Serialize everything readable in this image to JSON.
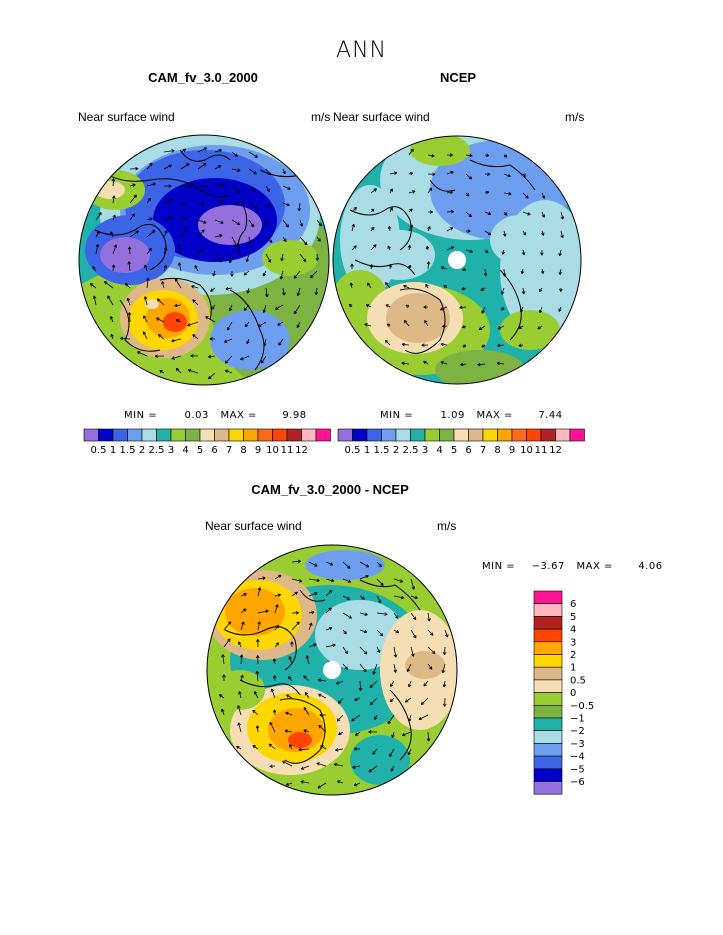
{
  "page": {
    "title": "ANN"
  },
  "colors": {
    "levels_absolute": [
      "#9370db",
      "#0000c8",
      "#3c64e6",
      "#6e9ef0",
      "#aadce6",
      "#20b2aa",
      "#9acd32",
      "#7cb342",
      "#f5deb3",
      "#deb887",
      "#ffd700",
      "#ffa500",
      "#ff6a1a",
      "#ff4500",
      "#b22222",
      "#ffb6c1",
      "#ff1493"
    ],
    "levels_diff": [
      "#ff1493",
      "#ffb6c1",
      "#b22222",
      "#ff4500",
      "#ffa500",
      "#ffd700",
      "#deb887",
      "#f5deb3",
      "#9acd32",
      "#7cb342",
      "#20b2aa",
      "#aadce6",
      "#6e9ef0",
      "#3c64e6",
      "#0000c8",
      "#9370db"
    ]
  },
  "panels": {
    "model": {
      "title": "CAM_fv_3.0_2000",
      "variable": "Near surface wind",
      "units": "m/s",
      "min_label": "MIN =",
      "min_value": "0.03",
      "max_label": "MAX =",
      "max_value": "9.98",
      "colorbar_labels": [
        "0.5",
        "1",
        "1.5",
        "2",
        "2.5",
        "3",
        "4",
        "5",
        "6",
        "7",
        "8",
        "9",
        "10",
        "11",
        "12"
      ]
    },
    "obs": {
      "title": "NCEP",
      "variable": "Near surface wind",
      "units": "m/s",
      "min_label": "MIN =",
      "min_value": "1.09",
      "max_label": "MAX =",
      "max_value": "7.44",
      "colorbar_labels": [
        "0.5",
        "1",
        "1.5",
        "2",
        "2.5",
        "3",
        "4",
        "5",
        "6",
        "7",
        "8",
        "9",
        "10",
        "11",
        "12"
      ]
    },
    "diff": {
      "title": "CAM_fv_3.0_2000 - NCEP",
      "variable": "Near surface wind",
      "units": "m/s",
      "min_label": "MIN =",
      "min_value": "−3.67",
      "max_label": "MAX =",
      "max_value": "4.06",
      "colorbar_labels": [
        "6",
        "5",
        "4",
        "3",
        "2",
        "1",
        "0.5",
        "0",
        "−0.5",
        "−1",
        "−2",
        "−3",
        "−4",
        "−5",
        "−6"
      ]
    }
  }
}
